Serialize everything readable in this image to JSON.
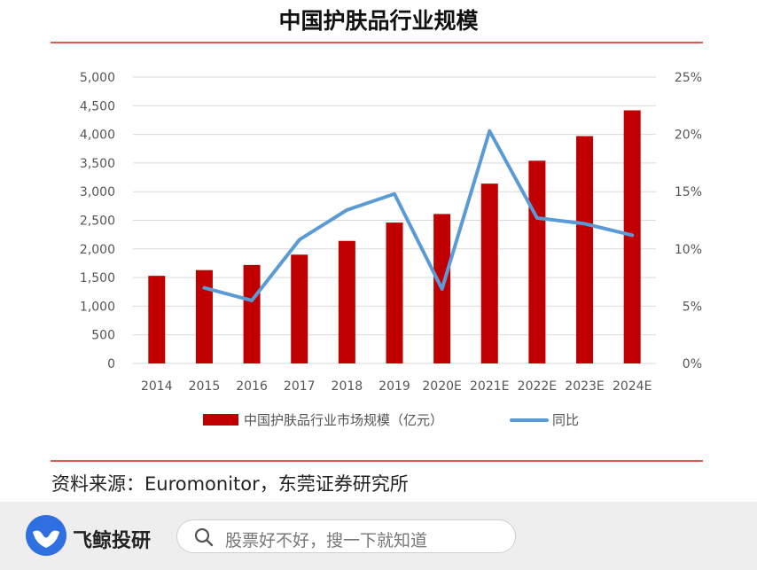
{
  "header": {
    "title": "中国护肤品行业规模"
  },
  "chart_data": {
    "type": "bar",
    "categories": [
      "2014",
      "2015",
      "2016",
      "2017",
      "2018",
      "2019",
      "2020E",
      "2021E",
      "2022E",
      "2023E",
      "2024E"
    ],
    "series": [
      {
        "name": "中国护肤品行业市场规模（亿元）",
        "type": "bar",
        "axis": "left",
        "color": "#c00000",
        "values": [
          1530,
          1630,
          1720,
          1900,
          2140,
          2460,
          2610,
          3140,
          3540,
          3970,
          4420
        ]
      },
      {
        "name": "同比",
        "type": "line",
        "axis": "right",
        "color": "#5b9bd5",
        "values": [
          null,
          6.6,
          5.5,
          10.8,
          13.4,
          14.8,
          6.5,
          20.3,
          12.7,
          12.2,
          11.2
        ]
      }
    ],
    "y_left": {
      "min": 0,
      "max": 5000,
      "ticks": [
        "0",
        "500",
        "1,000",
        "1,500",
        "2,000",
        "2,500",
        "3,000",
        "3,500",
        "4,000",
        "4,500",
        "5,000"
      ]
    },
    "y_right": {
      "min": 0,
      "max": 25,
      "ticks": [
        "0%",
        "5%",
        "10%",
        "15%",
        "20%",
        "25%"
      ]
    },
    "grid": true,
    "legend_position": "bottom"
  },
  "footer": {
    "source": "资料来源：Euromonitor，东莞证券研究所"
  },
  "app_bar": {
    "brand": "飞鲸投研",
    "search_placeholder": "股票好不好，搜一下就知道"
  }
}
